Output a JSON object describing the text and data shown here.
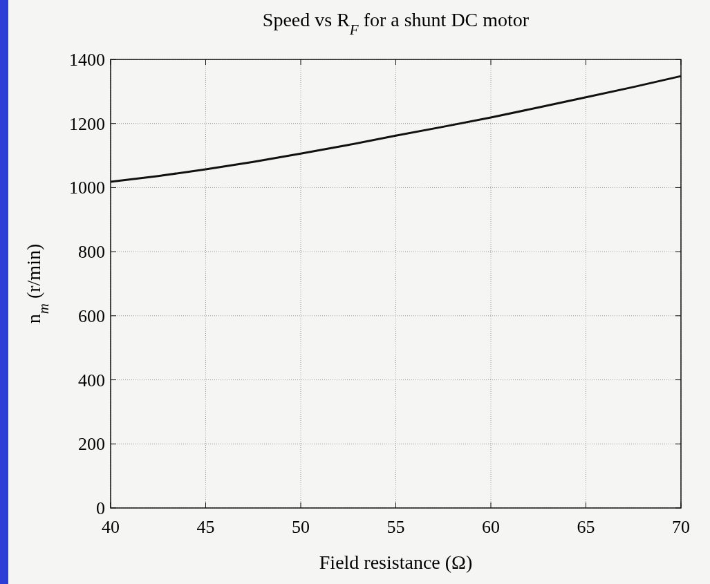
{
  "chart_data": {
    "type": "line",
    "title": "Speed vs R$_{F}$ for a shunt DC motor",
    "xlabel": "Field resistance (Ω)",
    "ylabel": "n$_{m}$ (r/min)",
    "x": [
      40,
      42.5,
      45,
      47.5,
      50,
      52.5,
      55,
      57.5,
      60,
      62.5,
      65,
      67.5,
      70
    ],
    "series": [
      {
        "color": "#111111",
        "values": [
          1018,
          1036,
          1057,
          1080,
          1106,
          1133,
          1162,
          1190,
          1219,
          1250,
          1282,
          1314,
          1348
        ]
      }
    ],
    "xlim": [
      40,
      70
    ],
    "xticks": [
      40,
      45,
      50,
      55,
      60,
      65,
      70
    ],
    "ylim": [
      0,
      1400
    ],
    "yticks": [
      0,
      200,
      400,
      600,
      800,
      1000,
      1200,
      1400
    ],
    "grid": true,
    "line_style": "solid",
    "marker": "none"
  }
}
